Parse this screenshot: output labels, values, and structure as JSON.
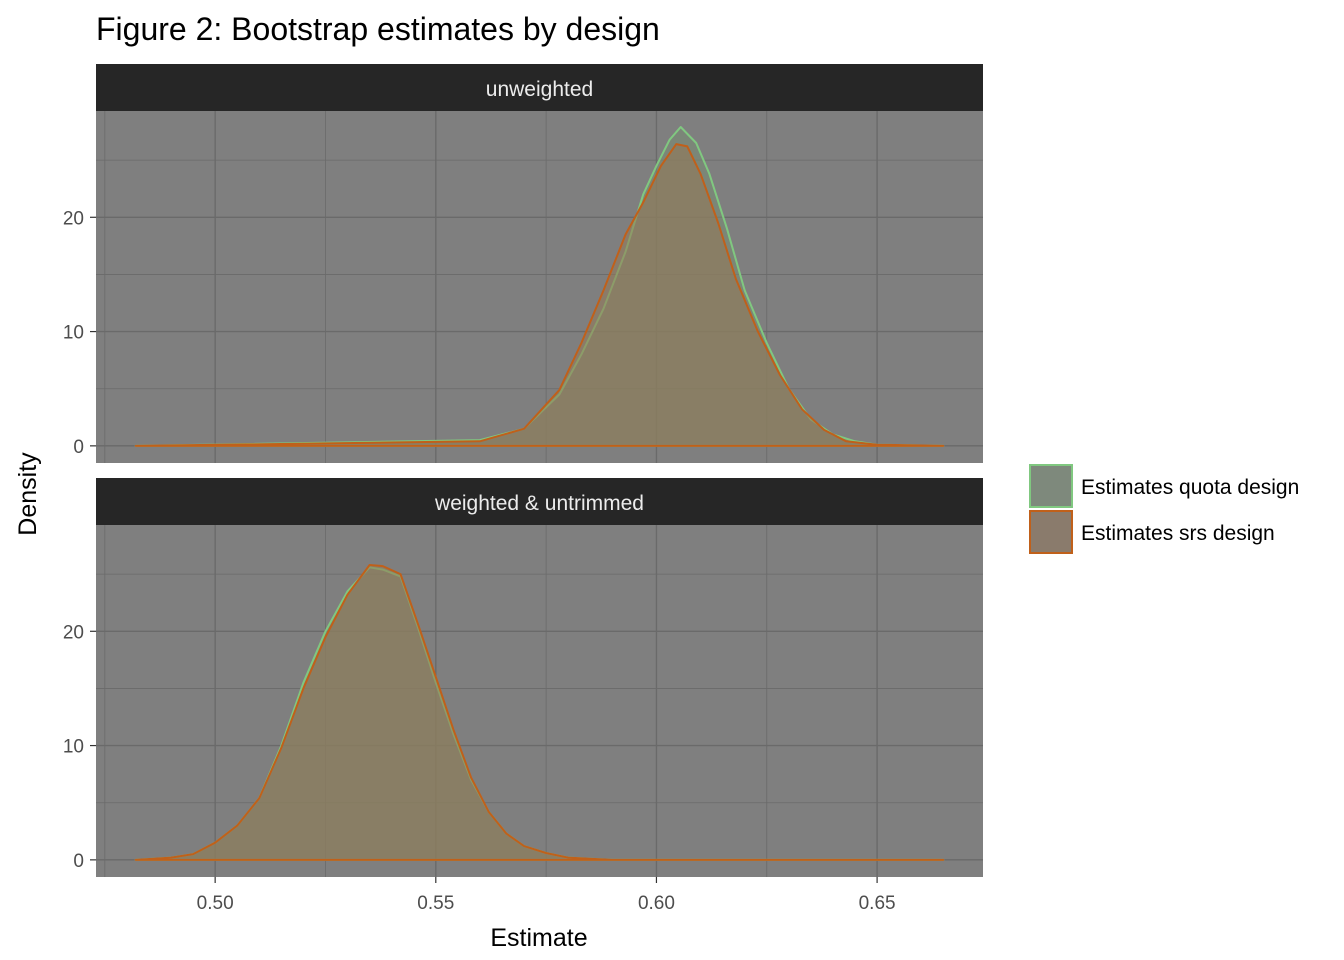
{
  "chart_data": {
    "type": "area",
    "title": "Figure 2: Bootstrap estimates by design",
    "xlabel": "Estimate",
    "ylabel": "Density",
    "xlim": [
      0.473,
      0.674
    ],
    "ylim": [
      -1.5,
      29.3
    ],
    "x_ticks": [
      0.5,
      0.55,
      0.6,
      0.65
    ],
    "x_tick_labels": [
      "0.50",
      "0.55",
      "0.60",
      "0.65"
    ],
    "y_ticks": [
      0,
      10,
      20
    ],
    "y_tick_labels": [
      "0",
      "10",
      "20"
    ],
    "grid": true,
    "legend_position": "right",
    "panels": [
      {
        "label": "unweighted",
        "series": [
          {
            "name": "Estimates quota design",
            "x": [
              0.482,
              0.56,
              0.57,
              0.578,
              0.583,
              0.588,
              0.593,
              0.597,
              0.6,
              0.603,
              0.6055,
              0.609,
              0.612,
              0.616,
              0.62,
              0.625,
              0.63,
              0.635,
              0.64,
              0.645,
              0.65,
              0.665
            ],
            "y": [
              0,
              0.5,
              1.5,
              4.5,
              8,
              12,
              17,
              22,
              24.5,
              26.8,
              27.9,
              26.5,
              23.8,
              19,
              13.6,
              9,
              5,
              2.3,
              1,
              0.4,
              0.1,
              0
            ]
          },
          {
            "name": "Estimates srs design",
            "x": [
              0.482,
              0.56,
              0.57,
              0.578,
              0.583,
              0.588,
              0.593,
              0.597,
              0.601,
              0.6045,
              0.607,
              0.61,
              0.614,
              0.618,
              0.623,
              0.628,
              0.633,
              0.638,
              0.643,
              0.65,
              0.665
            ],
            "y": [
              0,
              0.4,
              1.5,
              4.9,
              9,
              13.6,
              18.5,
              21.3,
              24.5,
              26.4,
              26.2,
              23.8,
              19.5,
              14.6,
              10,
              6.2,
              3.2,
              1.4,
              0.4,
              0.1,
              0
            ]
          }
        ]
      },
      {
        "label": "weighted & untrimmed",
        "series": [
          {
            "name": "Estimates quota design",
            "x": [
              0.482,
              0.49,
              0.495,
              0.5,
              0.505,
              0.51,
              0.515,
              0.52,
              0.525,
              0.53,
              0.535,
              0.538,
              0.542,
              0.546,
              0.55,
              0.554,
              0.558,
              0.562,
              0.566,
              0.57,
              0.575,
              0.58,
              0.59,
              0.665
            ],
            "y": [
              0,
              0.2,
              0.5,
              1.5,
              3,
              5.4,
              10,
              15.5,
              20,
              23.5,
              25.6,
              25.4,
              24.8,
              20.3,
              15.5,
              11,
              7,
              4.2,
              2.3,
              1.2,
              0.6,
              0.2,
              0,
              0
            ]
          },
          {
            "name": "Estimates srs design",
            "x": [
              0.482,
              0.49,
              0.495,
              0.5,
              0.505,
              0.51,
              0.515,
              0.52,
              0.525,
              0.53,
              0.535,
              0.538,
              0.542,
              0.546,
              0.55,
              0.554,
              0.558,
              0.562,
              0.566,
              0.57,
              0.575,
              0.58,
              0.59,
              0.665
            ],
            "y": [
              0,
              0.2,
              0.5,
              1.5,
              3,
              5.4,
              9.8,
              15,
              19.5,
              23.2,
              25.8,
              25.7,
              25,
              20.6,
              16,
              11.4,
              7.2,
              4.2,
              2.3,
              1.2,
              0.6,
              0.2,
              0,
              0
            ]
          }
        ]
      }
    ],
    "legend": [
      {
        "name": "Estimates quota design",
        "stroke": "#80c880",
        "fill": "#7f8a7f"
      },
      {
        "name": "Estimates srs design",
        "stroke": "#c0601a",
        "fill": "#8a7a6c"
      }
    ],
    "colors": {
      "panel_background": "#7f7f7f",
      "strip_background": "#262626",
      "grid": "#6a6a6a",
      "quota_stroke": "#80c880",
      "srs_stroke": "#c0601a",
      "overlap_fill": "#8a8268"
    }
  }
}
